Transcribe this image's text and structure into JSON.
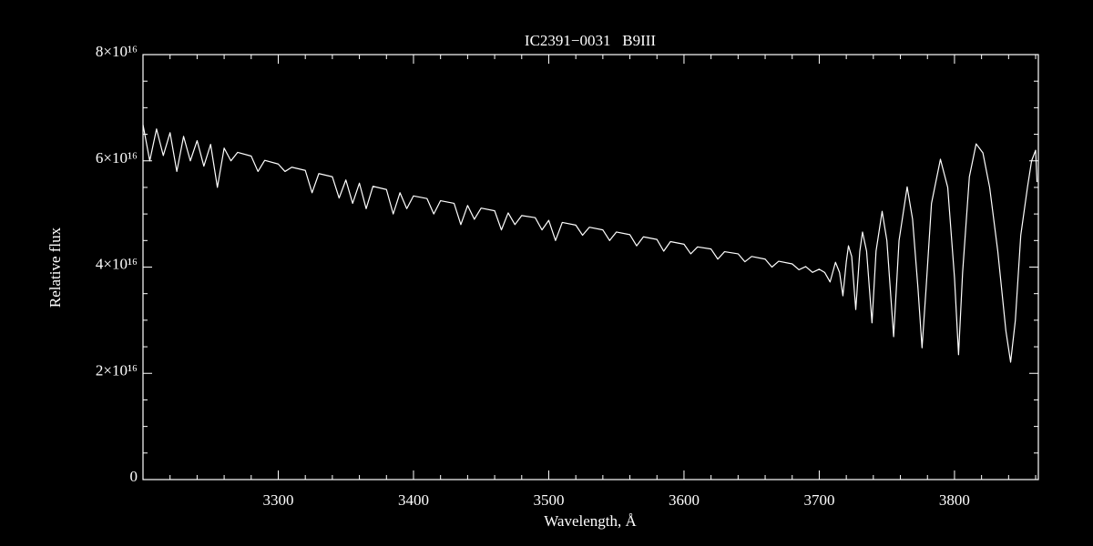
{
  "chart_data": {
    "type": "line",
    "title": "IC2391−0031   B9III",
    "x_label": "Wavelength, Å",
    "y_label": "Relative flux",
    "color": "#ffffff",
    "xlim": [
      3200,
      3862
    ],
    "ylim": [
      0,
      8e+16
    ],
    "xticks": [
      3300,
      3400,
      3500,
      3600,
      3700,
      3800
    ],
    "yticks": [
      {
        "value": 0,
        "label": "0"
      },
      {
        "value": 2e+16,
        "label": "2×10¹⁶"
      },
      {
        "value": 4e+16,
        "label": "4×10¹⁶"
      },
      {
        "value": 6e+16,
        "label": "6×10¹⁶"
      },
      {
        "value": 8e+16,
        "label": "8×10¹⁶"
      }
    ],
    "xminorticks": [
      3200,
      3220,
      3240,
      3260,
      3280,
      3320,
      3340,
      3360,
      3380,
      3420,
      3440,
      3460,
      3480,
      3520,
      3540,
      3560,
      3580,
      3620,
      3640,
      3660,
      3680,
      3720,
      3740,
      3760,
      3780,
      3820,
      3840,
      3860
    ],
    "yminorticks": [
      5000000000000000.0,
      1e+16,
      1.5e+16,
      2.5e+16,
      3e+16,
      3.5e+16,
      4.5e+16,
      5e+16,
      5.5e+16,
      6.5e+16,
      7e+16,
      7.5e+16
    ],
    "x": [
      3200,
      3205,
      3210,
      3215,
      3220,
      3225,
      3230,
      3235,
      3240,
      3245,
      3250,
      3255,
      3260,
      3265,
      3270,
      3280,
      3285,
      3290,
      3300,
      3305,
      3310,
      3320,
      3325,
      3330,
      3340,
      3345,
      3350,
      3355,
      3360,
      3365,
      3370,
      3380,
      3385,
      3390,
      3395,
      3400,
      3410,
      3415,
      3420,
      3430,
      3435,
      3440,
      3445,
      3450,
      3460,
      3465,
      3470,
      3475,
      3480,
      3490,
      3495,
      3500,
      3505,
      3510,
      3520,
      3525,
      3530,
      3540,
      3545,
      3550,
      3560,
      3565,
      3570,
      3580,
      3585,
      3590,
      3600,
      3605,
      3610,
      3620,
      3625,
      3630,
      3640,
      3645,
      3650,
      3660,
      3665,
      3670,
      3680,
      3685,
      3690,
      3695,
      3700,
      3704,
      3708,
      3712,
      3715,
      3717.5,
      3720,
      3721.6,
      3724,
      3727,
      3730,
      3732,
      3735,
      3739,
      3742,
      3746.5,
      3750,
      3755,
      3759,
      3765,
      3769,
      3773,
      3776,
      3779,
      3783,
      3789.6,
      3795,
      3800,
      3803,
      3806,
      3811,
      3816,
      3821,
      3826,
      3832,
      3838,
      3841.5,
      3845,
      3849,
      3854,
      3857,
      3860,
      3861
    ],
    "values": [
      6.68e+16,
      6e+16,
      6.6e+16,
      6.1e+16,
      6.53e+16,
      5.8e+16,
      6.46e+16,
      6e+16,
      6.38e+16,
      5.9e+16,
      6.31e+16,
      5.5e+16,
      6.24e+16,
      6e+16,
      6.16e+16,
      6.09e+16,
      5.8e+16,
      6.01e+16,
      5.94e+16,
      5.8e+16,
      5.88e+16,
      5.82e+16,
      5.4e+16,
      5.76e+16,
      5.7e+16,
      5.3e+16,
      5.64e+16,
      5.2e+16,
      5.58e+16,
      5.1e+16,
      5.52e+16,
      5.46e+16,
      5e+16,
      5.4e+16,
      5.1e+16,
      5.34e+16,
      5.29e+16,
      5e+16,
      5.25e+16,
      5.2e+16,
      4.8e+16,
      5.16e+16,
      4.9e+16,
      5.11e+16,
      5.06e+16,
      4.7e+16,
      5.02e+16,
      4.8e+16,
      4.97e+16,
      4.93e+16,
      4.7e+16,
      4.88e+16,
      4.5e+16,
      4.84e+16,
      4.79e+16,
      4.6e+16,
      4.75e+16,
      4.7e+16,
      4.5e+16,
      4.66e+16,
      4.61e+16,
      4.4e+16,
      4.57e+16,
      4.52e+16,
      4.3e+16,
      4.48e+16,
      4.43e+16,
      4.25e+16,
      4.38e+16,
      4.34e+16,
      4.15e+16,
      4.29e+16,
      4.25e+16,
      4.1e+16,
      4.2e+16,
      4.15e+16,
      4e+16,
      4.11e+16,
      4.06e+16,
      3.95e+16,
      4.01e+16,
      3.9e+16,
      3.96e+16,
      3.9e+16,
      3.72e+16,
      4.09e+16,
      3.9e+16,
      3.46e+16,
      4.1e+16,
      4.4e+16,
      4.2e+16,
      3.2e+16,
      4.3e+16,
      4.66e+16,
      4.3e+16,
      2.95e+16,
      4.3e+16,
      5.05e+16,
      4.5e+16,
      2.69e+16,
      4.5e+16,
      5.51e+16,
      4.9e+16,
      3.6e+16,
      2.48e+16,
      3.6e+16,
      5.2e+16,
      6.03e+16,
      5.5e+16,
      3.8e+16,
      2.35e+16,
      3.9e+16,
      5.7e+16,
      6.32e+16,
      6.15e+16,
      5.5e+16,
      4.3e+16,
      2.8e+16,
      2.21e+16,
      3e+16,
      4.6e+16,
      5.51e+16,
      6e+16,
      6.2e+16,
      5.6e+16
    ]
  }
}
